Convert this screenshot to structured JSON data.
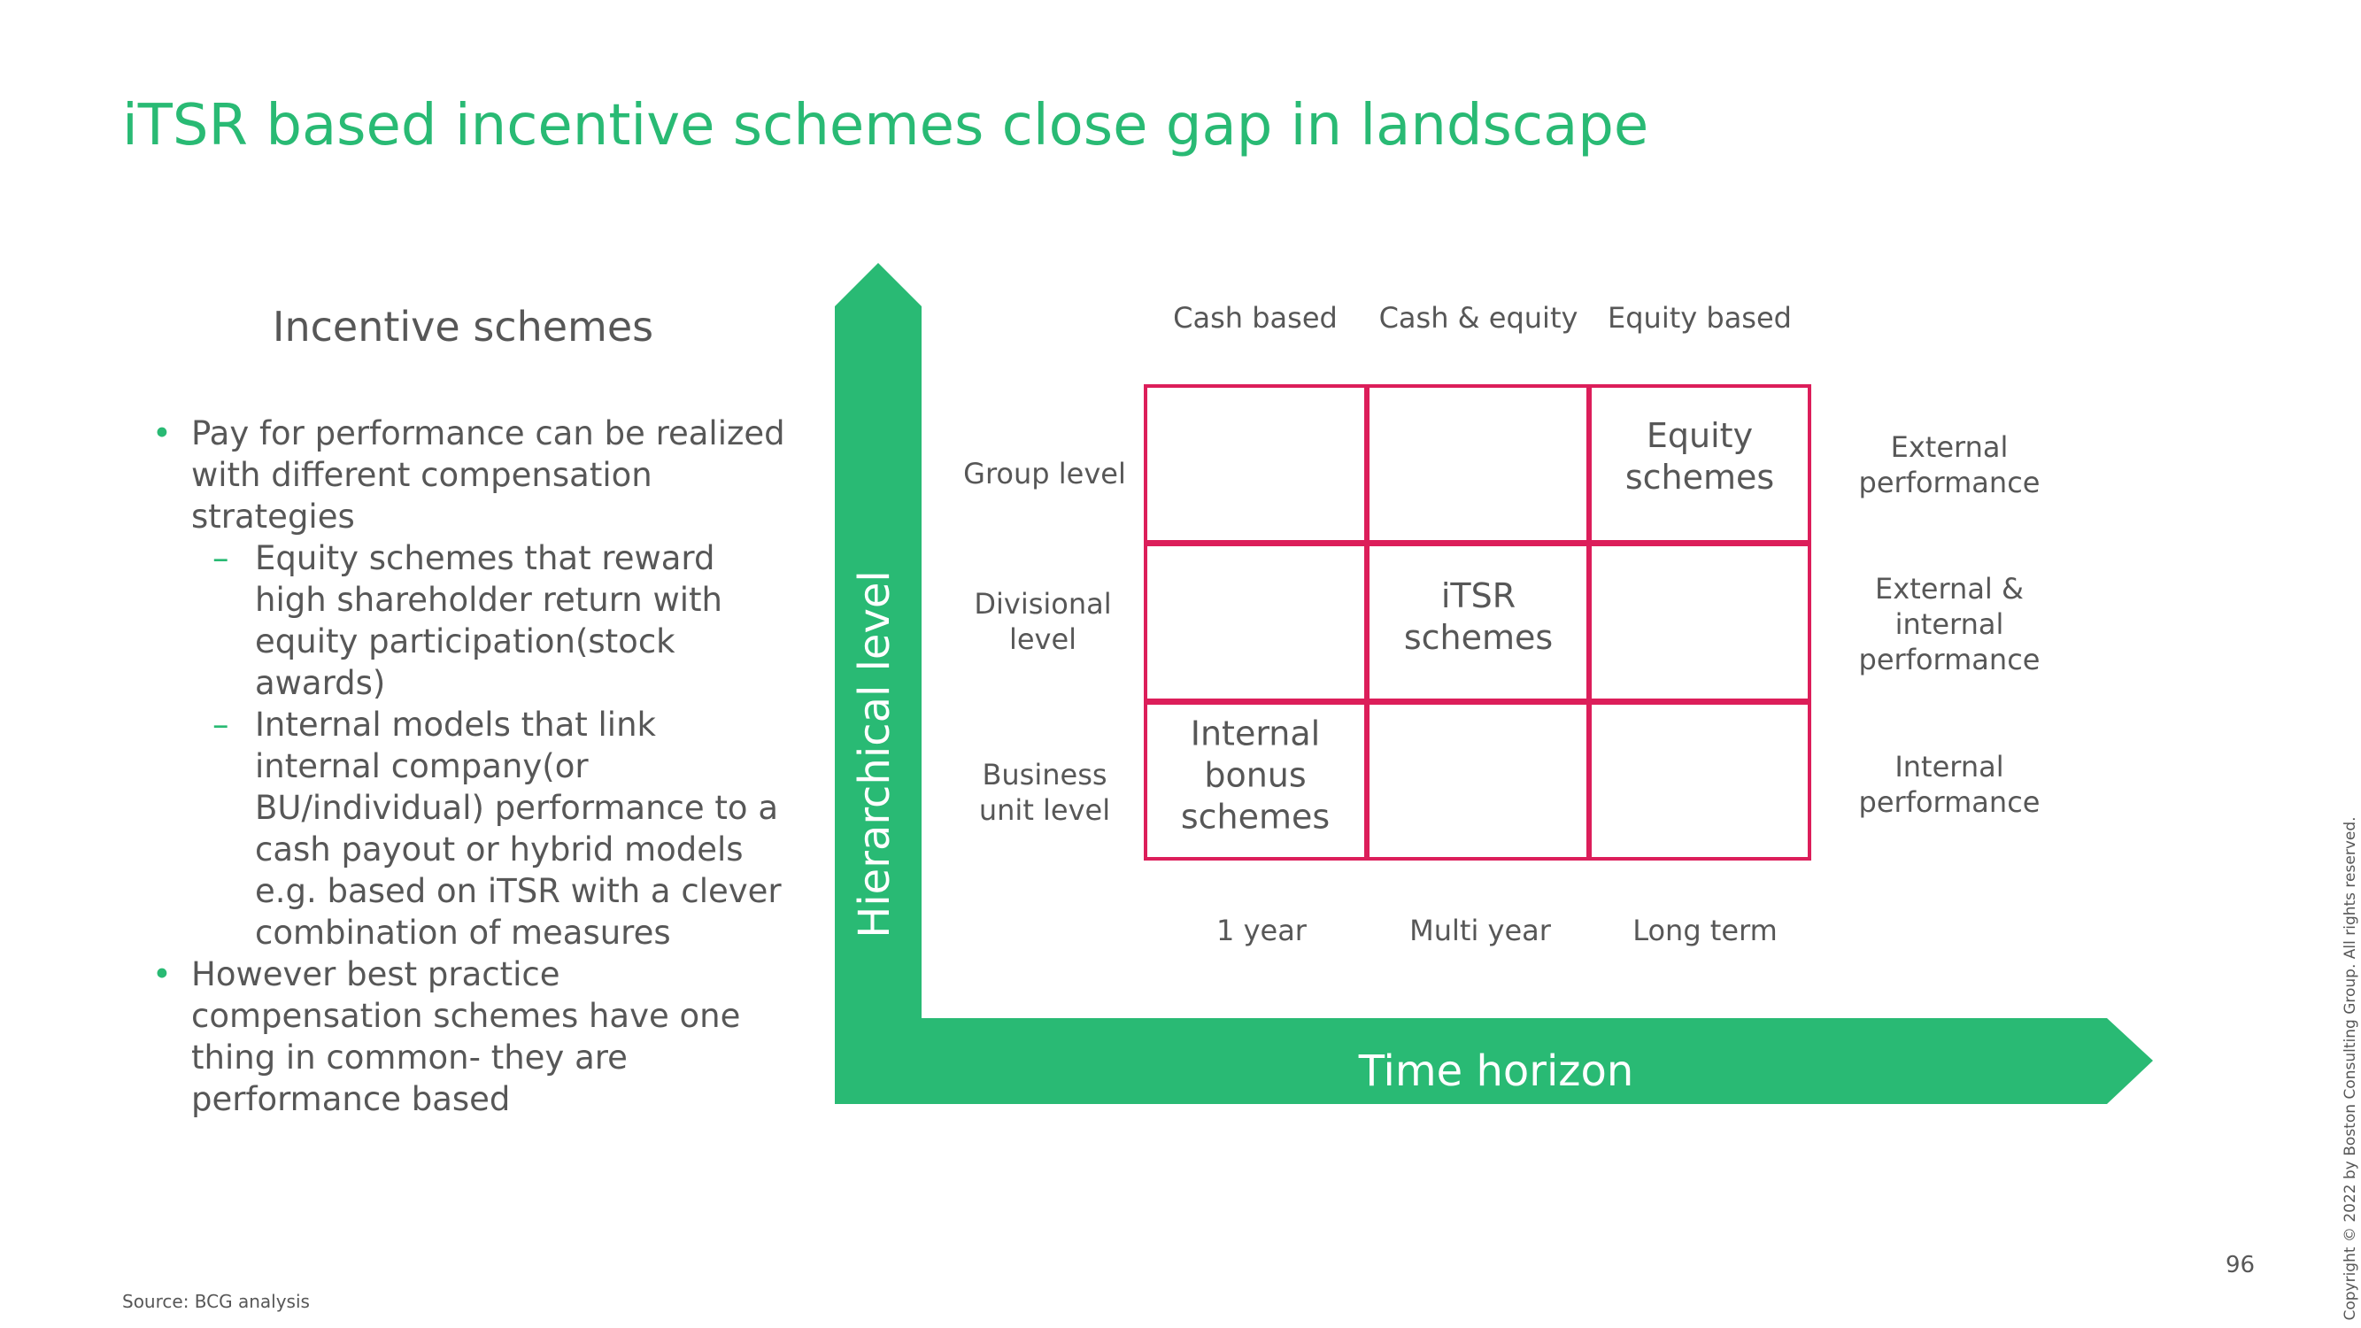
{
  "title": "iTSR based incentive schemes close gap in landscape",
  "left": {
    "heading": "Incentive schemes",
    "bullets": [
      {
        "text": "Pay for performance can be realized with different compensation strategies",
        "level": 1
      },
      {
        "text": "Equity schemes that reward high shareholder return with equity participation(stock awards)",
        "level": 2
      },
      {
        "text": "Internal models that link internal company(or BU/individual) performance to a cash payout or hybrid models e.g. based on iTSR with a clever combination of measures",
        "level": 2
      },
      {
        "text": "However best practice compensation schemes have one thing in common- they are performance based",
        "level": 1
      }
    ]
  },
  "diagram": {
    "y_axis_label": "Hierarchical level",
    "x_axis_label": "Time horizon",
    "columns_top": [
      "Cash based",
      "Cash & equity",
      "Equity based"
    ],
    "columns_bottom": [
      "1 year",
      "Multi year",
      "Long term"
    ],
    "rows": [
      "Group level",
      "Divisional level",
      "Business unit level"
    ],
    "right_labels": [
      "External performance",
      "External & internal performance",
      "Internal performance"
    ],
    "cells": {
      "top_right": "Equity schemes",
      "middle_center": "iTSR schemes",
      "bottom_left": "Internal bonus schemes"
    }
  },
  "source": "Source: BCG analysis",
  "page_number": "96",
  "copyright": "Copyright © 2022 by Boston Consulting Group. All rights reserved.",
  "colors": {
    "accent": "#29ba74",
    "grid": "#dc1e5a",
    "text": "#575757"
  }
}
